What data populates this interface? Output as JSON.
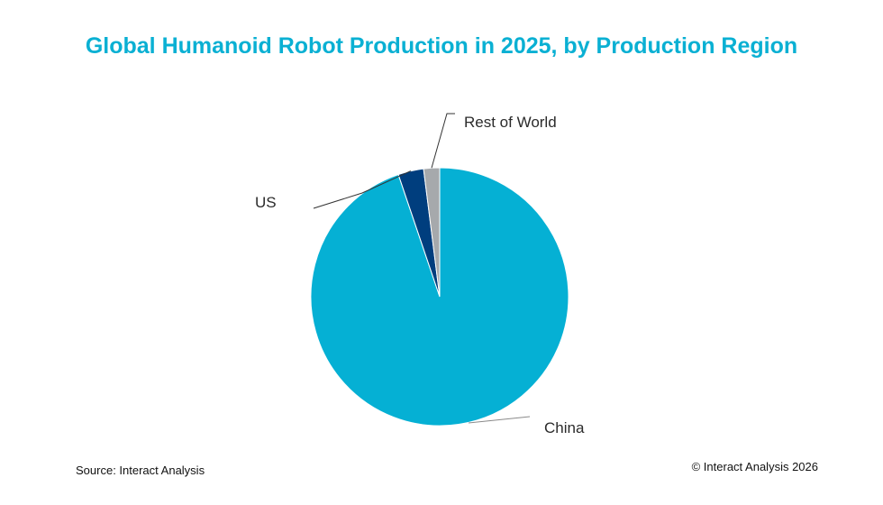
{
  "chart_data": {
    "type": "pie",
    "title": "Global Humanoid Robot Production in 2025, by Production Region",
    "slices": [
      {
        "label": "China",
        "value": 94.8,
        "color": "#05b0d4"
      },
      {
        "label": "US",
        "value": 3.2,
        "color": "#003e7e"
      },
      {
        "label": "Rest of World",
        "value": 2.0,
        "color": "#a6a9ac"
      }
    ],
    "start_angle_deg": 0,
    "direction": "clockwise"
  },
  "footer": {
    "source": "Source: Interact Analysis",
    "copyright": "© Interact Analysis 2026"
  }
}
